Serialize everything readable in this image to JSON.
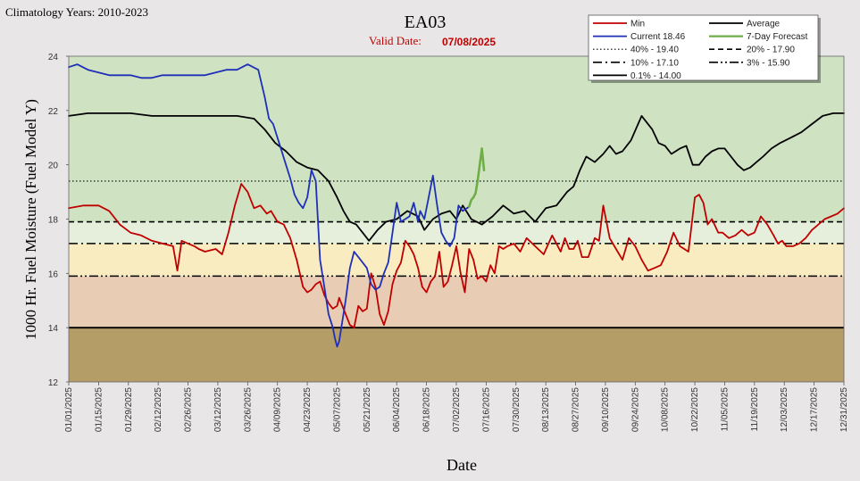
{
  "header": {
    "climatology": "Climatology Years: 2010-2023",
    "station": "EA03",
    "valid_label": "Valid Date:",
    "valid_date": "07/08/2025"
  },
  "colors": {
    "background": "#e8e6e6",
    "band_green": "#cfe3c3",
    "band_lightgreen": "#e6efdc",
    "band_yellow": "#f8ecc0",
    "band_tan": "#e8cdb4",
    "band_brown": "#b59d68",
    "min": "#c00000",
    "current": "#1f2fb8",
    "average": "#000000",
    "forecast": "#6fae47"
  },
  "chart_data": {
    "type": "line",
    "xlabel": "Date",
    "ylabel": "1000 Hr. Fuel Moisture  (Fuel Model Y)",
    "ylim": [
      12,
      24
    ],
    "yticks": [
      12,
      14,
      16,
      18,
      20,
      22,
      24
    ],
    "x_range": [
      "01/01/2025",
      "12/31/2025"
    ],
    "x_ticks": [
      "01/01/2025",
      "01/15/2025",
      "01/29/2025",
      "02/12/2025",
      "02/26/2025",
      "03/12/2025",
      "03/26/2025",
      "04/09/2025",
      "04/23/2025",
      "05/07/2025",
      "05/21/2025",
      "06/04/2025",
      "06/18/2025",
      "07/02/2025",
      "07/16/2025",
      "07/30/2025",
      "08/13/2025",
      "08/27/2025",
      "09/10/2025",
      "09/24/2025",
      "10/08/2025",
      "10/22/2025",
      "11/05/2025",
      "11/19/2025",
      "12/03/2025",
      "12/17/2025",
      "12/31/2025"
    ],
    "grid": false,
    "legend_position": "top-right",
    "bands": [
      {
        "from": 12,
        "to": 14,
        "color": "#b59d68"
      },
      {
        "from": 14,
        "to": 15.9,
        "color": "#e8cdb4"
      },
      {
        "from": 15.9,
        "to": 17.1,
        "color": "#f8ecc0"
      },
      {
        "from": 17.1,
        "to": 17.9,
        "color": "#e6efdc"
      },
      {
        "from": 17.9,
        "to": 24,
        "color": "#cfe3c3"
      }
    ],
    "percentiles": [
      {
        "label": "40% -  19.40",
        "value": 19.4,
        "dash": "1.5,2.5",
        "width": 1.2
      },
      {
        "label": "20% -  17.90",
        "value": 17.9,
        "dash": "6,4",
        "width": 1.6
      },
      {
        "label": "10% -  17.10",
        "value": 17.1,
        "dash": "10,4,2,4",
        "width": 1.6
      },
      {
        "label": "3% -  15.90",
        "value": 15.9,
        "dash": "10,3,2,3,2,3",
        "width": 1.6
      },
      {
        "label": "0.1% -  14.00",
        "value": 14.0,
        "dash": "",
        "width": 1.8
      }
    ],
    "series": [
      {
        "name": "Min",
        "color": "#c00000",
        "width": 1.8,
        "x": [
          1,
          8,
          15,
          20,
          25,
          30,
          35,
          40,
          45,
          50,
          52,
          54,
          57,
          60,
          62,
          65,
          70,
          73,
          76,
          79,
          82,
          85,
          88,
          91,
          94,
          96,
          99,
          102,
          105,
          108,
          111,
          113,
          115,
          117,
          119,
          121,
          123,
          125,
          127,
          128,
          129,
          131,
          133,
          135,
          137,
          139,
          141,
          143,
          145,
          147,
          149,
          151,
          153,
          155,
          157,
          159,
          161,
          163,
          165,
          167,
          169,
          171,
          173,
          175,
          177,
          179,
          181,
          183,
          185,
          187,
          189,
          191,
          193,
          195,
          197,
          199,
          201,
          203,
          205,
          207,
          210,
          213,
          216,
          220,
          224,
          228,
          232,
          234,
          236,
          238,
          240,
          242,
          245,
          248,
          250,
          252,
          255,
          258,
          261,
          264,
          267,
          270,
          273,
          276,
          279,
          282,
          285,
          288,
          290,
          292,
          295,
          297,
          299,
          301,
          303,
          306,
          308,
          311,
          314,
          317,
          320,
          323,
          326,
          329,
          332,
          334,
          336,
          338,
          341,
          344,
          347,
          350,
          353,
          356,
          359,
          362,
          365
        ],
        "values": [
          18.4,
          18.5,
          18.5,
          18.3,
          17.8,
          17.5,
          17.4,
          17.2,
          17.1,
          17.0,
          16.1,
          17.2,
          17.1,
          17.0,
          16.9,
          16.8,
          16.9,
          16.7,
          17.5,
          18.5,
          19.3,
          19.0,
          18.4,
          18.5,
          18.2,
          18.3,
          17.9,
          17.8,
          17.3,
          16.5,
          15.5,
          15.3,
          15.4,
          15.6,
          15.7,
          15.2,
          14.9,
          14.7,
          14.8,
          15.1,
          14.9,
          14.5,
          14.1,
          14.0,
          14.8,
          14.6,
          14.7,
          16.0,
          15.5,
          14.5,
          14.1,
          14.6,
          15.6,
          16.1,
          16.4,
          17.2,
          17.0,
          16.7,
          16.2,
          15.5,
          15.3,
          15.7,
          15.9,
          16.8,
          15.5,
          15.7,
          16.3,
          17.0,
          16.0,
          15.3,
          16.9,
          16.5,
          15.8,
          15.9,
          15.7,
          16.3,
          16.0,
          17.0,
          16.9,
          17.0,
          17.1,
          16.8,
          17.3,
          17.0,
          16.7,
          17.4,
          16.8,
          17.3,
          16.9,
          16.9,
          17.2,
          16.6,
          16.6,
          17.3,
          17.2,
          18.5,
          17.3,
          16.9,
          16.5,
          17.3,
          17.0,
          16.5,
          16.1,
          16.2,
          16.3,
          16.8,
          17.5,
          17.0,
          16.9,
          16.8,
          18.8,
          18.9,
          18.6,
          17.8,
          18.0,
          17.5,
          17.5,
          17.3,
          17.4,
          17.6,
          17.4,
          17.5,
          18.1,
          17.8,
          17.4,
          17.1,
          17.2,
          17.0,
          17.0,
          17.1,
          17.3,
          17.6,
          17.8,
          18.0,
          18.1,
          18.2,
          18.4
        ]
      },
      {
        "name": "Average",
        "color": "#000000",
        "width": 1.8,
        "x": [
          1,
          10,
          20,
          30,
          40,
          50,
          60,
          70,
          80,
          88,
          93,
          98,
          103,
          108,
          113,
          118,
          123,
          127,
          130,
          133,
          136,
          139,
          142,
          146,
          150,
          155,
          160,
          165,
          168,
          172,
          176,
          180,
          183,
          186,
          190,
          195,
          200,
          205,
          210,
          215,
          220,
          225,
          230,
          235,
          238,
          241,
          244,
          248,
          252,
          255,
          258,
          261,
          265,
          270,
          275,
          278,
          281,
          284,
          286,
          288,
          291,
          294,
          297,
          300,
          303,
          306,
          309,
          312,
          315,
          318,
          321,
          324,
          327,
          331,
          335,
          340,
          345,
          350,
          355,
          360,
          365
        ],
        "values": [
          21.8,
          21.9,
          21.9,
          21.9,
          21.8,
          21.8,
          21.8,
          21.8,
          21.8,
          21.7,
          21.3,
          20.8,
          20.5,
          20.1,
          19.9,
          19.8,
          19.4,
          18.8,
          18.3,
          17.9,
          17.8,
          17.5,
          17.2,
          17.6,
          17.9,
          18.0,
          18.3,
          18.1,
          17.6,
          18.0,
          18.2,
          18.3,
          18.0,
          18.5,
          18.0,
          17.8,
          18.1,
          18.5,
          18.2,
          18.3,
          17.9,
          18.4,
          18.5,
          19.0,
          19.2,
          19.8,
          20.3,
          20.1,
          20.4,
          20.7,
          20.4,
          20.5,
          20.9,
          21.8,
          21.3,
          20.8,
          20.7,
          20.4,
          20.5,
          20.6,
          20.7,
          20.0,
          20.0,
          20.3,
          20.5,
          20.6,
          20.6,
          20.3,
          20.0,
          19.8,
          19.9,
          20.1,
          20.3,
          20.6,
          20.8,
          21.0,
          21.2,
          21.5,
          21.8,
          21.9,
          21.9
        ]
      },
      {
        "name": "Current 18.46",
        "color": "#1f2fb8",
        "width": 1.8,
        "x": [
          1,
          5,
          10,
          15,
          20,
          25,
          30,
          35,
          40,
          45,
          50,
          55,
          60,
          65,
          70,
          75,
          80,
          85,
          90,
          93,
          95,
          97,
          99,
          101,
          103,
          105,
          107,
          109,
          111,
          113,
          115,
          117,
          119,
          121,
          123,
          125,
          126,
          127,
          128,
          129,
          130,
          131,
          133,
          135,
          137,
          139,
          141,
          143,
          145,
          147,
          149,
          151,
          153,
          155,
          157,
          159,
          161,
          163,
          165,
          166,
          168,
          170,
          172,
          174,
          176,
          178,
          180,
          182,
          184,
          186,
          188,
          189
        ],
        "values": [
          23.6,
          23.7,
          23.5,
          23.4,
          23.3,
          23.3,
          23.3,
          23.2,
          23.2,
          23.3,
          23.3,
          23.3,
          23.3,
          23.3,
          23.4,
          23.5,
          23.5,
          23.7,
          23.5,
          22.5,
          21.7,
          21.5,
          21.0,
          20.5,
          20.0,
          19.5,
          18.9,
          18.6,
          18.4,
          18.8,
          19.8,
          19.4,
          16.5,
          15.5,
          14.5,
          14.0,
          13.6,
          13.3,
          13.5,
          14.0,
          14.5,
          15.0,
          16.2,
          16.8,
          16.6,
          16.4,
          16.2,
          15.6,
          15.4,
          15.5,
          16.0,
          16.4,
          17.5,
          18.6,
          17.9,
          18.0,
          18.1,
          18.6,
          17.9,
          18.3,
          18.0,
          18.8,
          19.6,
          18.5,
          17.5,
          17.2,
          17.0,
          17.3,
          18.5,
          18.3,
          18.4,
          18.46
        ]
      },
      {
        "name": "7-Day Forecast",
        "color": "#6fae47",
        "width": 2.6,
        "x": [
          189,
          190,
          191,
          192,
          193,
          194,
          195,
          196
        ],
        "values": [
          18.46,
          18.7,
          18.8,
          18.95,
          19.4,
          20.0,
          20.6,
          19.8
        ]
      }
    ]
  }
}
